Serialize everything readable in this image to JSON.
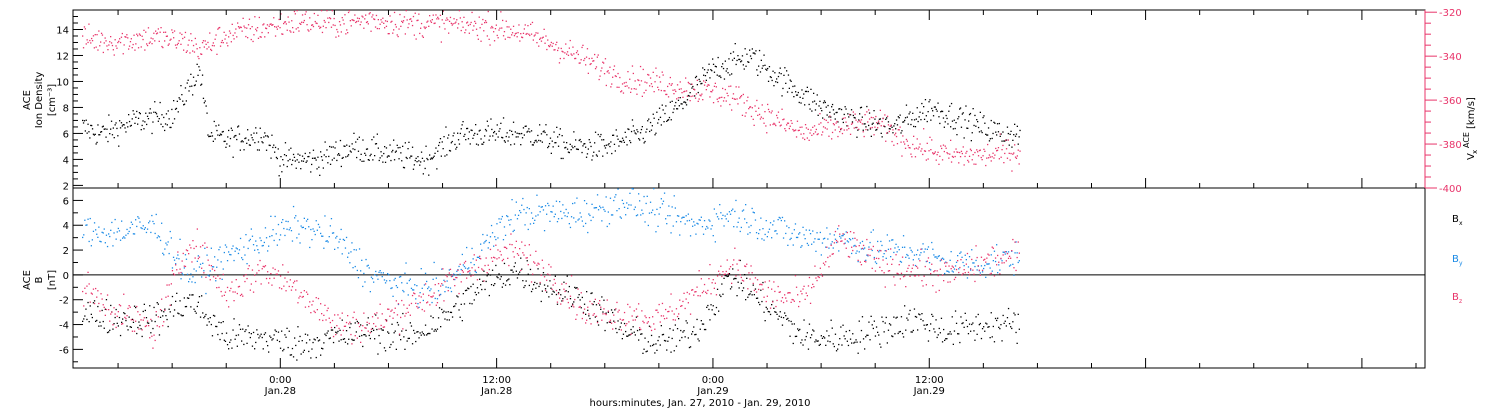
{
  "colors": {
    "black": "#000000",
    "pink": "#e8346a",
    "blue": "#1a8ae6"
  },
  "xaxis": {
    "range_hours": [
      -11.5,
      63.5
    ],
    "tick_time_labels": [
      "0:00",
      "12:00",
      "0:00",
      "12:00"
    ],
    "tick_date_labels": [
      "Jan.28",
      "Jan.28",
      "Jan.29",
      "Jan.29"
    ],
    "tick_hours": [
      0,
      12,
      24,
      36
    ],
    "caption": "hours:minutes, Jan. 27, 2010 - Jan. 29, 2010"
  },
  "chart_data": [
    {
      "type": "scatter",
      "title": "",
      "left_axis": {
        "label_lines": [
          "ACE",
          "Ion Density",
          "[cm⁻³]"
        ],
        "ylim": [
          1.8,
          15.5
        ],
        "ticks": [
          2,
          4,
          6,
          8,
          10,
          12,
          14
        ]
      },
      "right_axis": {
        "label_lines": [
          "V",
          "x",
          "ACE",
          "[km/s]"
        ],
        "ylim": [
          -400,
          -319
        ],
        "ticks": [
          -320,
          -340,
          -360,
          -380,
          -400
        ]
      },
      "series": [
        {
          "axis": "left",
          "color": "black",
          "x_hours": [
            -11,
            -10,
            -8,
            -6,
            -4.5,
            -4,
            -3,
            -1,
            0,
            2,
            4,
            6,
            8,
            10,
            12,
            14,
            16,
            18,
            20,
            22,
            24,
            26,
            28,
            30,
            32,
            34,
            36,
            38,
            40,
            41
          ],
          "y": [
            6.5,
            6,
            7,
            7.5,
            11,
            6,
            5.5,
            6,
            4,
            4,
            5,
            4.5,
            4,
            6,
            6,
            6,
            5,
            5,
            6,
            8,
            11,
            12,
            10,
            8,
            7,
            6.5,
            8,
            7,
            6,
            6
          ]
        },
        {
          "axis": "right",
          "color": "pink",
          "x_hours": [
            -11,
            -9,
            -7,
            -5,
            -4.5,
            -3,
            -1,
            1,
            3,
            5,
            7,
            9,
            11,
            13,
            15,
            17,
            19,
            21,
            23,
            25,
            27,
            29,
            31,
            33,
            35,
            37,
            39,
            41
          ],
          "y": [
            -332,
            -333,
            -331,
            -334,
            -337,
            -330,
            -327,
            -324,
            -325,
            -323,
            -325,
            -325,
            -326,
            -328,
            -334,
            -342,
            -350,
            -352,
            -355,
            -358,
            -367,
            -375,
            -372,
            -370,
            -380,
            -385,
            -385,
            -383
          ]
        }
      ]
    },
    {
      "type": "scatter",
      "title": "",
      "left_axis": {
        "label_lines": [
          "ACE",
          "B",
          "[nT]"
        ],
        "ylim": [
          -7.5,
          7
        ],
        "ticks": [
          -6,
          -4,
          -2,
          0,
          2,
          4,
          6
        ]
      },
      "legend": [
        "B",
        "B",
        "B"
      ],
      "legend_subs": [
        "x",
        "y",
        "z"
      ],
      "legend_placement": "right",
      "series": [
        {
          "name_index": 0,
          "color": "black",
          "x_hours": [
            -11,
            -9,
            -7,
            -5,
            -3,
            -1,
            1,
            3,
            5,
            7,
            9,
            11,
            13,
            15,
            17,
            19,
            21,
            23,
            25,
            27,
            29,
            31,
            33,
            35,
            37,
            39,
            41
          ],
          "y": [
            -3,
            -3.5,
            -3.5,
            -2,
            -5,
            -5,
            -5.5,
            -5,
            -4.5,
            -5,
            -3.5,
            -1,
            0.5,
            -1,
            -2,
            -4.5,
            -5.5,
            -4.5,
            0,
            -2.5,
            -5,
            -5,
            -4.5,
            -3.5,
            -4.5,
            -4,
            -4
          ]
        },
        {
          "name_index": 1,
          "color": "blue",
          "x_hours": [
            -11,
            -9,
            -7,
            -5,
            -3,
            -1,
            1,
            3,
            5,
            7,
            9,
            11,
            13,
            15,
            17,
            19,
            21,
            23,
            25,
            27,
            29,
            31,
            33,
            35,
            37,
            39,
            41
          ],
          "y": [
            3.5,
            3.5,
            4,
            0,
            1.5,
            3,
            4,
            3,
            0,
            -1,
            -1,
            2,
            5,
            5,
            5,
            6,
            5,
            4,
            5,
            4,
            3,
            3,
            2,
            2,
            1,
            1,
            1.5
          ]
        },
        {
          "name_index": 2,
          "color": "pink",
          "x_hours": [
            -11,
            -9,
            -7,
            -5,
            -3,
            -1,
            1,
            3,
            5,
            7,
            9,
            11,
            13,
            15,
            17,
            19,
            21,
            23,
            25,
            27,
            29,
            31,
            33,
            35,
            37,
            39,
            41
          ],
          "y": [
            -1,
            -3,
            -4.5,
            3,
            -1.5,
            0.5,
            -1,
            -4,
            -4,
            -2.5,
            -1,
            1,
            2,
            0,
            -3,
            -3,
            -3.5,
            -1.5,
            1,
            -1.5,
            -2,
            3,
            1,
            0.5,
            0,
            1,
            1.5
          ]
        }
      ]
    }
  ]
}
